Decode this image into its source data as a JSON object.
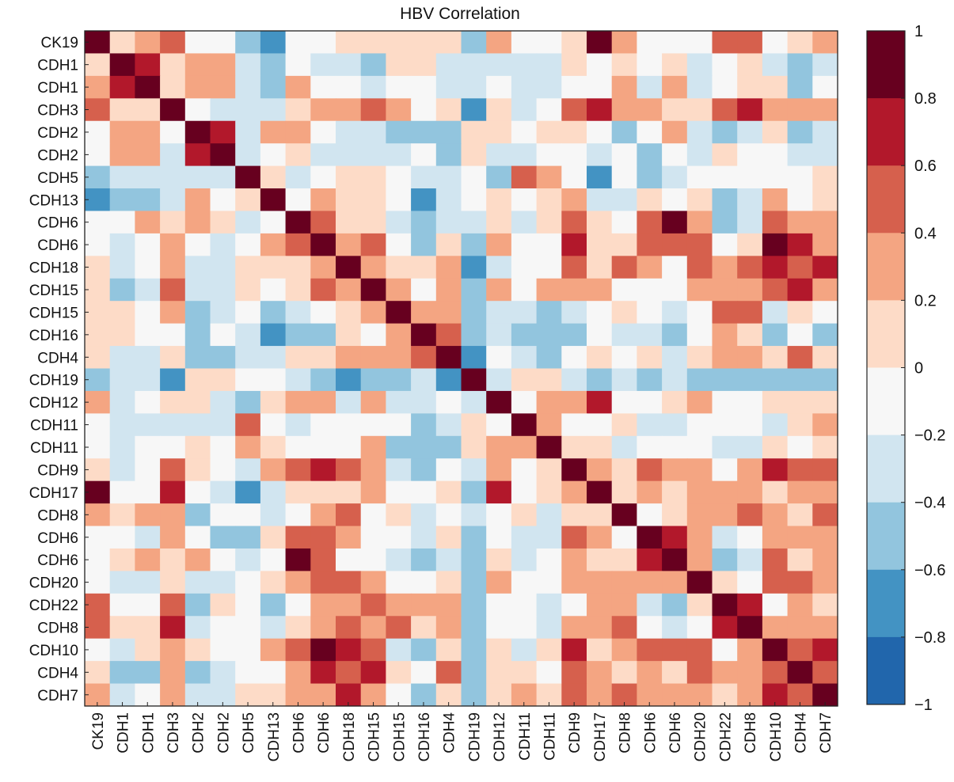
{
  "chart_data": {
    "type": "heatmap",
    "title": "HBV Correlation",
    "xlabel": "",
    "ylabel": "",
    "labels": [
      "CK19",
      "CDH1",
      "CDH1",
      "CDH3",
      "CDH2",
      "CDH2",
      "CDH5",
      "CDH13",
      "CDH6",
      "CDH6",
      "CDH18",
      "CDH15",
      "CDH15",
      "CDH16",
      "CDH4",
      "CDH19",
      "CDH12",
      "CDH11",
      "CDH11",
      "CDH9",
      "CDH17",
      "CDH8",
      "CDH6",
      "CDH6",
      "CDH20",
      "CDH22",
      "CDH8",
      "CDH10",
      "CDH4",
      "CDH7"
    ],
    "value_range": [
      -1,
      1
    ],
    "colorbar": {
      "ticks": [
        1,
        0.8,
        0.6,
        0.4,
        0.2,
        0,
        -0.2,
        -0.4,
        -0.6,
        -0.8,
        -1
      ],
      "tick_labels": [
        "1",
        "0.8",
        "0.6",
        "0.4",
        "0.2",
        "0",
        "−0.2",
        "−0.4",
        "−0.6",
        "−0.8",
        "−1"
      ],
      "bins": [
        {
          "min": 0.8,
          "max": 1.0,
          "color": "#67001f"
        },
        {
          "min": 0.6,
          "max": 0.8,
          "color": "#b2182b"
        },
        {
          "min": 0.4,
          "max": 0.6,
          "color": "#d6604d"
        },
        {
          "min": 0.2,
          "max": 0.4,
          "color": "#f4a582"
        },
        {
          "min": 0.0,
          "max": 0.2,
          "color": "#fddbc7"
        },
        {
          "min": -0.2,
          "max": 0.0,
          "color": "#f7f7f7"
        },
        {
          "min": -0.4,
          "max": -0.2,
          "color": "#d1e5f0"
        },
        {
          "min": -0.6,
          "max": -0.4,
          "color": "#92c5de"
        },
        {
          "min": -0.8,
          "max": -0.6,
          "color": "#4393c3"
        },
        {
          "min": -1.0,
          "max": -0.8,
          "color": "#2166ac"
        }
      ]
    },
    "matrix": [
      [
        1.0,
        0.1,
        0.3,
        0.5,
        -0.1,
        -0.1,
        -0.5,
        -0.7,
        -0.1,
        -0.1,
        0.1,
        0.1,
        0.1,
        0.1,
        0.1,
        -0.5,
        0.3,
        -0.1,
        -0.1,
        0.1,
        0.9,
        0.3,
        -0.1,
        -0.1,
        -0.1,
        0.5,
        0.5,
        -0.1,
        0.1,
        0.3
      ],
      [
        0.1,
        1.0,
        0.7,
        0.1,
        0.3,
        0.3,
        -0.3,
        -0.5,
        -0.1,
        -0.3,
        -0.3,
        -0.5,
        0.1,
        0.1,
        -0.3,
        -0.3,
        -0.3,
        -0.3,
        -0.3,
        0.1,
        -0.1,
        0.1,
        -0.1,
        0.1,
        -0.3,
        -0.1,
        0.1,
        -0.3,
        -0.5,
        -0.3
      ],
      [
        0.3,
        0.7,
        1.0,
        0.1,
        0.3,
        0.3,
        -0.3,
        -0.5,
        0.3,
        -0.1,
        -0.1,
        -0.3,
        -0.1,
        -0.1,
        -0.3,
        -0.3,
        -0.1,
        -0.3,
        -0.3,
        -0.1,
        -0.1,
        0.3,
        -0.3,
        0.3,
        -0.3,
        -0.1,
        0.1,
        0.1,
        -0.5,
        -0.1
      ],
      [
        0.5,
        0.1,
        0.1,
        1.0,
        -0.1,
        -0.3,
        -0.3,
        -0.3,
        0.1,
        0.3,
        0.3,
        0.5,
        0.3,
        -0.1,
        0.1,
        -0.7,
        0.1,
        -0.3,
        -0.1,
        0.5,
        0.7,
        0.3,
        0.3,
        0.1,
        0.1,
        0.5,
        0.7,
        0.3,
        0.3,
        0.3
      ],
      [
        -0.1,
        0.3,
        0.3,
        -0.1,
        1.0,
        0.7,
        -0.3,
        0.3,
        0.3,
        -0.1,
        -0.3,
        -0.3,
        -0.5,
        -0.5,
        -0.5,
        0.1,
        0.1,
        -0.1,
        0.1,
        0.1,
        -0.1,
        -0.5,
        -0.1,
        0.3,
        -0.3,
        -0.5,
        -0.3,
        0.1,
        -0.5,
        -0.3
      ],
      [
        -0.1,
        0.3,
        0.3,
        -0.3,
        0.7,
        1.0,
        -0.3,
        -0.1,
        0.1,
        -0.3,
        -0.3,
        -0.3,
        -0.3,
        -0.1,
        -0.5,
        0.1,
        -0.3,
        -0.3,
        -0.1,
        -0.1,
        -0.3,
        -0.1,
        -0.5,
        -0.1,
        -0.3,
        0.1,
        -0.1,
        -0.1,
        -0.3,
        -0.3
      ],
      [
        -0.5,
        -0.3,
        -0.3,
        -0.3,
        -0.3,
        -0.3,
        1.0,
        0.1,
        -0.3,
        -0.1,
        0.1,
        0.1,
        -0.1,
        -0.3,
        -0.3,
        -0.1,
        -0.5,
        0.5,
        0.3,
        -0.1,
        -0.7,
        -0.1,
        -0.5,
        -0.3,
        -0.1,
        -0.1,
        -0.1,
        -0.1,
        -0.1,
        0.1
      ],
      [
        -0.7,
        -0.5,
        -0.5,
        -0.3,
        0.3,
        -0.1,
        0.1,
        1.0,
        -0.1,
        0.3,
        0.1,
        0.1,
        -0.1,
        -0.7,
        -0.3,
        -0.1,
        0.1,
        -0.1,
        0.1,
        0.3,
        -0.3,
        -0.3,
        0.1,
        -0.1,
        0.1,
        -0.5,
        -0.3,
        0.3,
        -0.1,
        0.1
      ],
      [
        -0.1,
        -0.1,
        0.3,
        0.1,
        0.3,
        0.1,
        -0.3,
        -0.1,
        1.0,
        0.5,
        0.1,
        0.1,
        -0.3,
        -0.5,
        -0.3,
        -0.3,
        0.1,
        -0.3,
        0.1,
        0.5,
        0.1,
        -0.1,
        0.5,
        1.0,
        0.3,
        -0.5,
        -0.3,
        0.5,
        0.3,
        0.3
      ],
      [
        -0.1,
        -0.3,
        -0.1,
        0.3,
        -0.1,
        -0.3,
        -0.1,
        0.3,
        0.5,
        1.0,
        0.3,
        0.5,
        -0.1,
        -0.5,
        0.1,
        -0.5,
        0.3,
        -0.1,
        -0.1,
        0.7,
        0.1,
        0.1,
        0.5,
        0.5,
        0.5,
        -0.1,
        0.1,
        0.9,
        0.7,
        0.3
      ],
      [
        0.1,
        -0.3,
        -0.1,
        0.3,
        -0.3,
        -0.3,
        0.1,
        0.1,
        0.1,
        0.3,
        1.0,
        0.3,
        0.1,
        0.1,
        0.3,
        -0.7,
        -0.3,
        -0.1,
        -0.1,
        0.5,
        0.1,
        0.5,
        0.3,
        -0.1,
        0.5,
        0.3,
        0.5,
        0.7,
        0.5,
        0.7
      ],
      [
        0.1,
        -0.5,
        -0.3,
        0.5,
        -0.3,
        -0.3,
        0.1,
        -0.1,
        0.1,
        0.5,
        0.3,
        1.0,
        0.3,
        -0.1,
        0.3,
        -0.5,
        0.3,
        -0.1,
        0.3,
        0.3,
        0.3,
        -0.1,
        -0.1,
        -0.1,
        0.3,
        0.3,
        0.3,
        0.5,
        0.7,
        0.3
      ],
      [
        0.1,
        0.1,
        -0.1,
        0.3,
        -0.5,
        -0.3,
        -0.1,
        -0.5,
        -0.3,
        -0.1,
        0.1,
        0.3,
        1.0,
        0.3,
        0.3,
        -0.5,
        -0.3,
        -0.3,
        -0.5,
        -0.3,
        -0.1,
        0.1,
        -0.1,
        -0.3,
        -0.1,
        0.5,
        0.5,
        -0.3,
        0.1,
        -0.1
      ],
      [
        0.1,
        0.1,
        -0.1,
        -0.1,
        -0.5,
        -0.1,
        -0.3,
        -0.7,
        -0.5,
        -0.5,
        0.1,
        -0.1,
        0.3,
        1.0,
        0.5,
        -0.5,
        -0.3,
        -0.5,
        -0.5,
        -0.5,
        -0.1,
        -0.3,
        -0.3,
        -0.5,
        -0.1,
        0.3,
        0.1,
        -0.5,
        -0.1,
        -0.5
      ],
      [
        0.1,
        -0.3,
        -0.3,
        0.1,
        -0.5,
        -0.5,
        -0.3,
        -0.3,
        0.1,
        0.1,
        0.3,
        0.3,
        0.3,
        0.5,
        1.0,
        -0.7,
        -0.1,
        -0.3,
        -0.5,
        -0.1,
        0.1,
        -0.1,
        0.1,
        -0.3,
        0.1,
        0.3,
        0.3,
        0.1,
        0.5,
        0.1
      ],
      [
        -0.5,
        -0.3,
        -0.3,
        -0.7,
        0.1,
        0.1,
        -0.1,
        -0.1,
        -0.3,
        -0.5,
        -0.7,
        -0.5,
        -0.5,
        -0.3,
        -0.7,
        1.0,
        -0.3,
        0.1,
        0.1,
        -0.3,
        -0.5,
        -0.3,
        -0.5,
        -0.3,
        -0.5,
        -0.5,
        -0.5,
        -0.5,
        -0.5,
        -0.5
      ],
      [
        0.3,
        -0.3,
        -0.1,
        0.1,
        0.1,
        -0.3,
        -0.5,
        0.1,
        0.3,
        0.3,
        -0.3,
        0.3,
        -0.3,
        -0.3,
        -0.1,
        -0.3,
        1.0,
        -0.1,
        0.3,
        0.3,
        0.7,
        -0.1,
        -0.1,
        0.1,
        0.3,
        -0.1,
        -0.1,
        0.1,
        0.1,
        0.1
      ],
      [
        -0.1,
        -0.3,
        -0.3,
        -0.3,
        -0.3,
        -0.3,
        0.5,
        -0.1,
        -0.3,
        -0.1,
        -0.1,
        -0.1,
        -0.1,
        -0.5,
        -0.3,
        0.1,
        -0.1,
        1.0,
        0.3,
        -0.1,
        -0.1,
        0.1,
        -0.3,
        -0.3,
        -0.1,
        -0.1,
        -0.1,
        -0.3,
        0.1,
        0.3
      ],
      [
        -0.1,
        -0.3,
        -0.1,
        -0.1,
        0.1,
        -0.1,
        0.3,
        0.1,
        -0.1,
        -0.1,
        -0.1,
        0.3,
        -0.5,
        -0.5,
        -0.5,
        0.1,
        0.3,
        0.3,
        1.0,
        0.1,
        0.1,
        -0.3,
        -0.1,
        -0.1,
        -0.1,
        -0.3,
        -0.3,
        0.1,
        -0.1,
        0.1
      ],
      [
        0.1,
        -0.3,
        -0.1,
        0.5,
        0.1,
        -0.1,
        -0.3,
        0.3,
        0.5,
        0.7,
        0.5,
        0.3,
        -0.3,
        -0.5,
        -0.1,
        -0.3,
        0.3,
        -0.1,
        0.1,
        1.0,
        0.3,
        0.1,
        0.5,
        0.3,
        0.3,
        -0.1,
        0.3,
        0.7,
        0.5,
        0.5
      ],
      [
        0.9,
        -0.1,
        -0.1,
        0.7,
        -0.1,
        -0.3,
        -0.7,
        -0.3,
        0.1,
        0.1,
        0.1,
        0.3,
        -0.1,
        -0.1,
        0.1,
        -0.5,
        0.7,
        -0.1,
        0.1,
        0.3,
        1.0,
        0.1,
        0.3,
        0.1,
        0.3,
        0.3,
        0.3,
        0.1,
        0.3,
        0.3
      ],
      [
        0.3,
        0.1,
        0.3,
        0.3,
        -0.5,
        -0.1,
        -0.1,
        -0.3,
        -0.1,
        0.3,
        0.5,
        -0.1,
        0.1,
        -0.3,
        -0.1,
        -0.3,
        -0.1,
        0.1,
        -0.3,
        0.1,
        0.1,
        1.0,
        -0.1,
        0.1,
        0.3,
        0.3,
        0.5,
        0.3,
        0.1,
        0.5
      ],
      [
        -0.1,
        -0.1,
        -0.3,
        0.3,
        -0.1,
        -0.5,
        -0.5,
        0.1,
        0.5,
        0.5,
        0.3,
        -0.1,
        -0.1,
        -0.3,
        0.1,
        -0.5,
        -0.1,
        -0.3,
        -0.3,
        0.5,
        0.3,
        -0.1,
        1.0,
        0.7,
        0.3,
        -0.3,
        -0.1,
        0.3,
        0.3,
        0.3
      ],
      [
        -0.1,
        0.1,
        0.3,
        0.1,
        0.3,
        -0.1,
        -0.3,
        -0.1,
        1.0,
        0.5,
        -0.1,
        -0.1,
        -0.3,
        -0.5,
        -0.3,
        -0.5,
        0.1,
        -0.3,
        -0.1,
        0.3,
        0.1,
        0.1,
        0.7,
        1.0,
        0.3,
        -0.5,
        -0.3,
        0.5,
        0.1,
        0.3
      ],
      [
        -0.1,
        -0.3,
        -0.3,
        0.1,
        -0.3,
        -0.3,
        -0.1,
        0.1,
        0.3,
        0.5,
        0.5,
        0.3,
        -0.1,
        -0.1,
        0.1,
        -0.5,
        0.3,
        -0.1,
        -0.1,
        0.3,
        0.3,
        0.3,
        0.3,
        0.3,
        1.0,
        0.1,
        -0.1,
        0.5,
        0.5,
        0.3
      ],
      [
        0.5,
        -0.1,
        -0.1,
        0.5,
        -0.5,
        0.1,
        -0.1,
        -0.5,
        -0.1,
        0.3,
        0.3,
        0.5,
        0.3,
        0.3,
        0.3,
        -0.5,
        -0.1,
        -0.1,
        -0.3,
        -0.1,
        0.3,
        0.3,
        -0.3,
        -0.5,
        0.1,
        1.0,
        0.7,
        -0.1,
        0.3,
        0.1
      ],
      [
        0.5,
        0.1,
        0.1,
        0.7,
        -0.3,
        -0.1,
        -0.1,
        -0.3,
        0.1,
        0.3,
        0.5,
        0.3,
        0.5,
        0.1,
        0.3,
        -0.5,
        -0.1,
        -0.1,
        -0.3,
        0.3,
        0.3,
        0.5,
        -0.1,
        -0.3,
        -0.1,
        0.7,
        1.0,
        0.3,
        0.3,
        0.3
      ],
      [
        -0.1,
        -0.3,
        0.1,
        0.3,
        0.1,
        -0.1,
        -0.1,
        0.3,
        0.5,
        0.9,
        0.7,
        0.5,
        -0.3,
        -0.5,
        0.1,
        -0.5,
        0.1,
        -0.3,
        0.1,
        0.7,
        0.1,
        0.3,
        0.5,
        0.5,
        0.5,
        -0.1,
        0.3,
        1.0,
        0.5,
        0.7
      ],
      [
        0.1,
        -0.5,
        -0.5,
        0.3,
        -0.5,
        -0.3,
        -0.1,
        -0.1,
        0.3,
        0.7,
        0.5,
        0.7,
        0.1,
        -0.1,
        0.5,
        -0.5,
        0.1,
        0.1,
        -0.1,
        0.5,
        0.3,
        0.1,
        0.3,
        0.1,
        0.5,
        0.3,
        0.3,
        0.5,
        1.0,
        0.5
      ],
      [
        0.3,
        -0.3,
        -0.1,
        0.3,
        -0.3,
        -0.3,
        0.1,
        0.1,
        0.3,
        0.3,
        0.7,
        0.3,
        -0.1,
        -0.5,
        0.1,
        -0.5,
        0.1,
        0.3,
        0.1,
        0.5,
        0.3,
        0.5,
        0.3,
        0.3,
        0.3,
        0.1,
        0.3,
        0.7,
        0.5,
        1.0
      ]
    ]
  }
}
